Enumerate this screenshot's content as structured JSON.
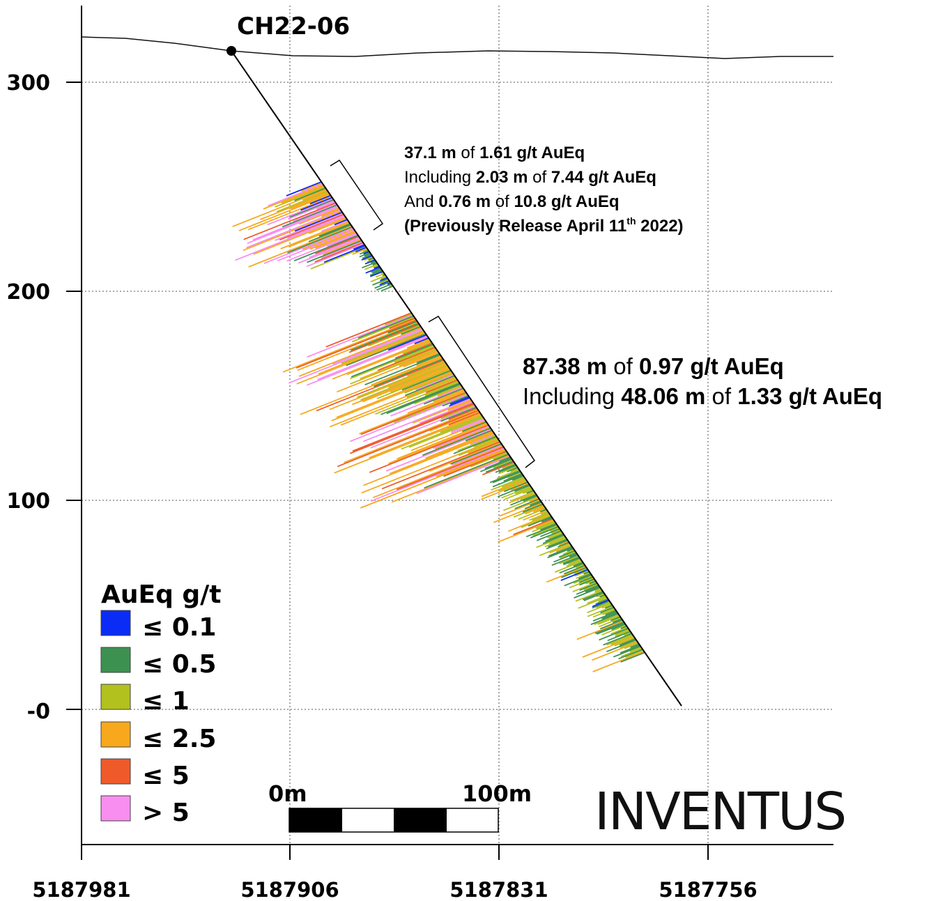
{
  "section": {
    "hole_id": "CH22-06",
    "y_axis": {
      "ticks": [
        {
          "value": 300,
          "label": "300"
        },
        {
          "value": 200,
          "label": "200"
        },
        {
          "value": 100,
          "label": "100"
        },
        {
          "value": 0,
          "label": "-0"
        }
      ]
    },
    "x_axis": {
      "ticks": [
        {
          "value": 5187981,
          "label": "5187981"
        },
        {
          "value": 5187906,
          "label": "5187906"
        },
        {
          "value": 5187831,
          "label": "5187831"
        },
        {
          "value": 5187756,
          "label": "5187756"
        }
      ]
    },
    "grid": "dotted"
  },
  "annotations": {
    "upper": {
      "line1": {
        "len": "37.1 m",
        "of": " of ",
        "grade": "1.61 g/t AuEq"
      },
      "line2": {
        "prefix": "Including ",
        "len": "2.03 m",
        "of": " of ",
        "grade": "7.44 g/t AuEq"
      },
      "line3": {
        "prefix": "And ",
        "len": "0.76 m",
        "of": " of ",
        "grade": "10.8 g/t AuEq"
      },
      "line4": {
        "text": "(Previously Release April 11",
        "sup": "th",
        "tail": " 2022)"
      }
    },
    "lower": {
      "line1": {
        "len": "87.38 m",
        "of": " of ",
        "grade": "0.97 g/t AuEq"
      },
      "line2": {
        "prefix": "Including ",
        "len": "48.06 m",
        "of": " of ",
        "grade": "1.33 g/t AuEq"
      }
    }
  },
  "legend": {
    "title": "AuEq g/t",
    "items": [
      {
        "label": "≤ 0.1",
        "color": "#0a2cf5"
      },
      {
        "label": "≤ 0.5",
        "color": "#3d9150"
      },
      {
        "label": "≤ 1",
        "color": "#b2c11e"
      },
      {
        "label": "≤ 2.5",
        "color": "#f7a81d"
      },
      {
        "label": "≤ 5",
        "color": "#ee5a2a"
      },
      {
        "label": "> 5",
        "color": "#f88ef0"
      }
    ]
  },
  "scale_bar": {
    "start_label": "0m",
    "end_label": "100m"
  },
  "logo": {
    "text": "INVENTUS"
  }
}
